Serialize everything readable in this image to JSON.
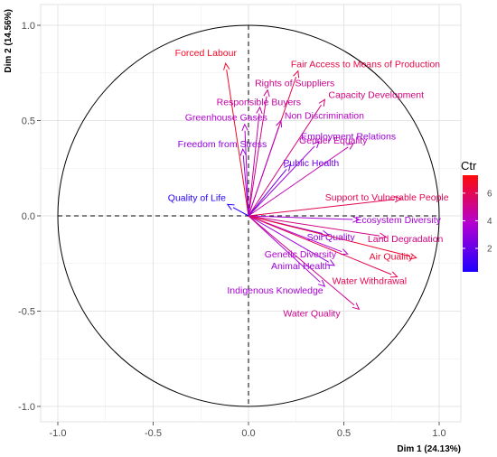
{
  "chart_data": {
    "type": "pca-correlation-circle",
    "xlabel": "Dim 1 (24.13%)",
    "ylabel": "Dim 2 (14.56%)",
    "xlim": [
      -1.0,
      1.0
    ],
    "ylim": [
      -1.0,
      1.0
    ],
    "x_ticks": [
      "-1.0",
      "-0.5",
      "0.0",
      "0.5",
      "1.0"
    ],
    "y_ticks": [
      "-1.0",
      "-0.5",
      "0.0",
      "0.5",
      "1.0"
    ],
    "grid": true,
    "legend": {
      "title": "Ctr",
      "position": "right",
      "ticks": [
        "2",
        "4",
        "6"
      ],
      "range": [
        0.3,
        7.3
      ],
      "low_color": "#1f00ff",
      "high_color": "#ff0a0a"
    },
    "variables": [
      {
        "label": "Forced Labour",
        "x": -0.12,
        "y": 0.8,
        "ctr": 6.8
      },
      {
        "label": "Fair Access to Means of Production",
        "x": 0.26,
        "y": 0.76,
        "ctr": 6.2
      },
      {
        "label": "Rights of Suppliers",
        "x": 0.1,
        "y": 0.66,
        "ctr": 5.0
      },
      {
        "label": "Responsible Buyers",
        "x": 0.06,
        "y": 0.57,
        "ctr": 4.6
      },
      {
        "label": "Capacity Development",
        "x": 0.4,
        "y": 0.61,
        "ctr": 5.3
      },
      {
        "label": "Greenhouse Gases",
        "x": -0.02,
        "y": 0.48,
        "ctr": 3.8
      },
      {
        "label": "Non Discrimination",
        "x": 0.17,
        "y": 0.5,
        "ctr": 4.0
      },
      {
        "label": "Freedom from Stress",
        "x": -0.03,
        "y": 0.35,
        "ctr": 3.0
      },
      {
        "label": "Employment Relations",
        "x": 0.37,
        "y": 0.39,
        "ctr": 3.3
      },
      {
        "label": "Public Health",
        "x": 0.22,
        "y": 0.27,
        "ctr": 2.2
      },
      {
        "label": "Gender Equality",
        "x": 0.55,
        "y": 0.38,
        "ctr": 4.4
      },
      {
        "label": "Quality of Life",
        "x": -0.11,
        "y": 0.06,
        "ctr": 0.4
      },
      {
        "label": "Support to Vulnerable People",
        "x": 0.8,
        "y": 0.09,
        "ctr": 6.0
      },
      {
        "label": "Ecosystem Diversity",
        "x": 0.58,
        "y": -0.02,
        "ctr": 3.5
      },
      {
        "label": "Land Degradation",
        "x": 0.72,
        "y": -0.11,
        "ctr": 5.2
      },
      {
        "label": "Soil Quality",
        "x": 0.42,
        "y": -0.1,
        "ctr": 3.0
      },
      {
        "label": "Genetic Diversity",
        "x": 0.52,
        "y": -0.2,
        "ctr": 3.8
      },
      {
        "label": "Air Quality",
        "x": 0.88,
        "y": -0.22,
        "ctr": 6.6
      },
      {
        "label": "Animal Health",
        "x": 0.45,
        "y": -0.26,
        "ctr": 3.2
      },
      {
        "label": "Water Withdrawal",
        "x": 0.78,
        "y": -0.32,
        "ctr": 6.0
      },
      {
        "label": "Indigenous Knowledge",
        "x": 0.4,
        "y": -0.37,
        "ctr": 3.5
      },
      {
        "label": "Water Quality",
        "x": 0.58,
        "y": -0.49,
        "ctr": 5.0
      }
    ]
  }
}
